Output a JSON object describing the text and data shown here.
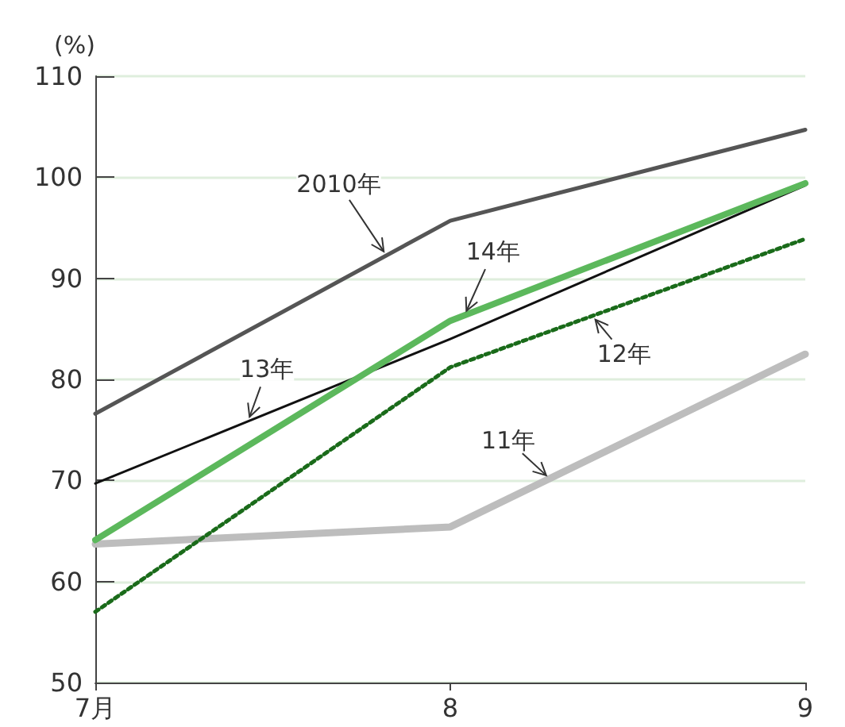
{
  "chart_data": {
    "type": "line",
    "ylabel": "(%)",
    "categories": [
      "7月",
      "8",
      "9"
    ],
    "ylim": [
      50,
      110
    ],
    "yticks": [
      50,
      60,
      70,
      80,
      90,
      100,
      110
    ],
    "grid": "y",
    "legend": false,
    "marker": "none",
    "series": [
      {
        "name": "2010年",
        "color": "#555555",
        "values": [
          76.6,
          95.7,
          104.7
        ],
        "line_style": "solid"
      },
      {
        "name": "14年",
        "color": "#5cb85c",
        "values": [
          64.1,
          85.8,
          99.4
        ],
        "line_style": "solid"
      },
      {
        "name": "13年",
        "color": "#111111",
        "values": [
          69.7,
          84,
          99.2
        ],
        "line_style": "solid"
      },
      {
        "name": "12年",
        "color": "#1a6b1a",
        "values": [
          57,
          81.2,
          93.9
        ],
        "line_style": "dotted"
      },
      {
        "name": "11年",
        "color": "#bdbdbd",
        "values": [
          63.7,
          65.4,
          82.5
        ],
        "line_style": "solid"
      }
    ]
  }
}
